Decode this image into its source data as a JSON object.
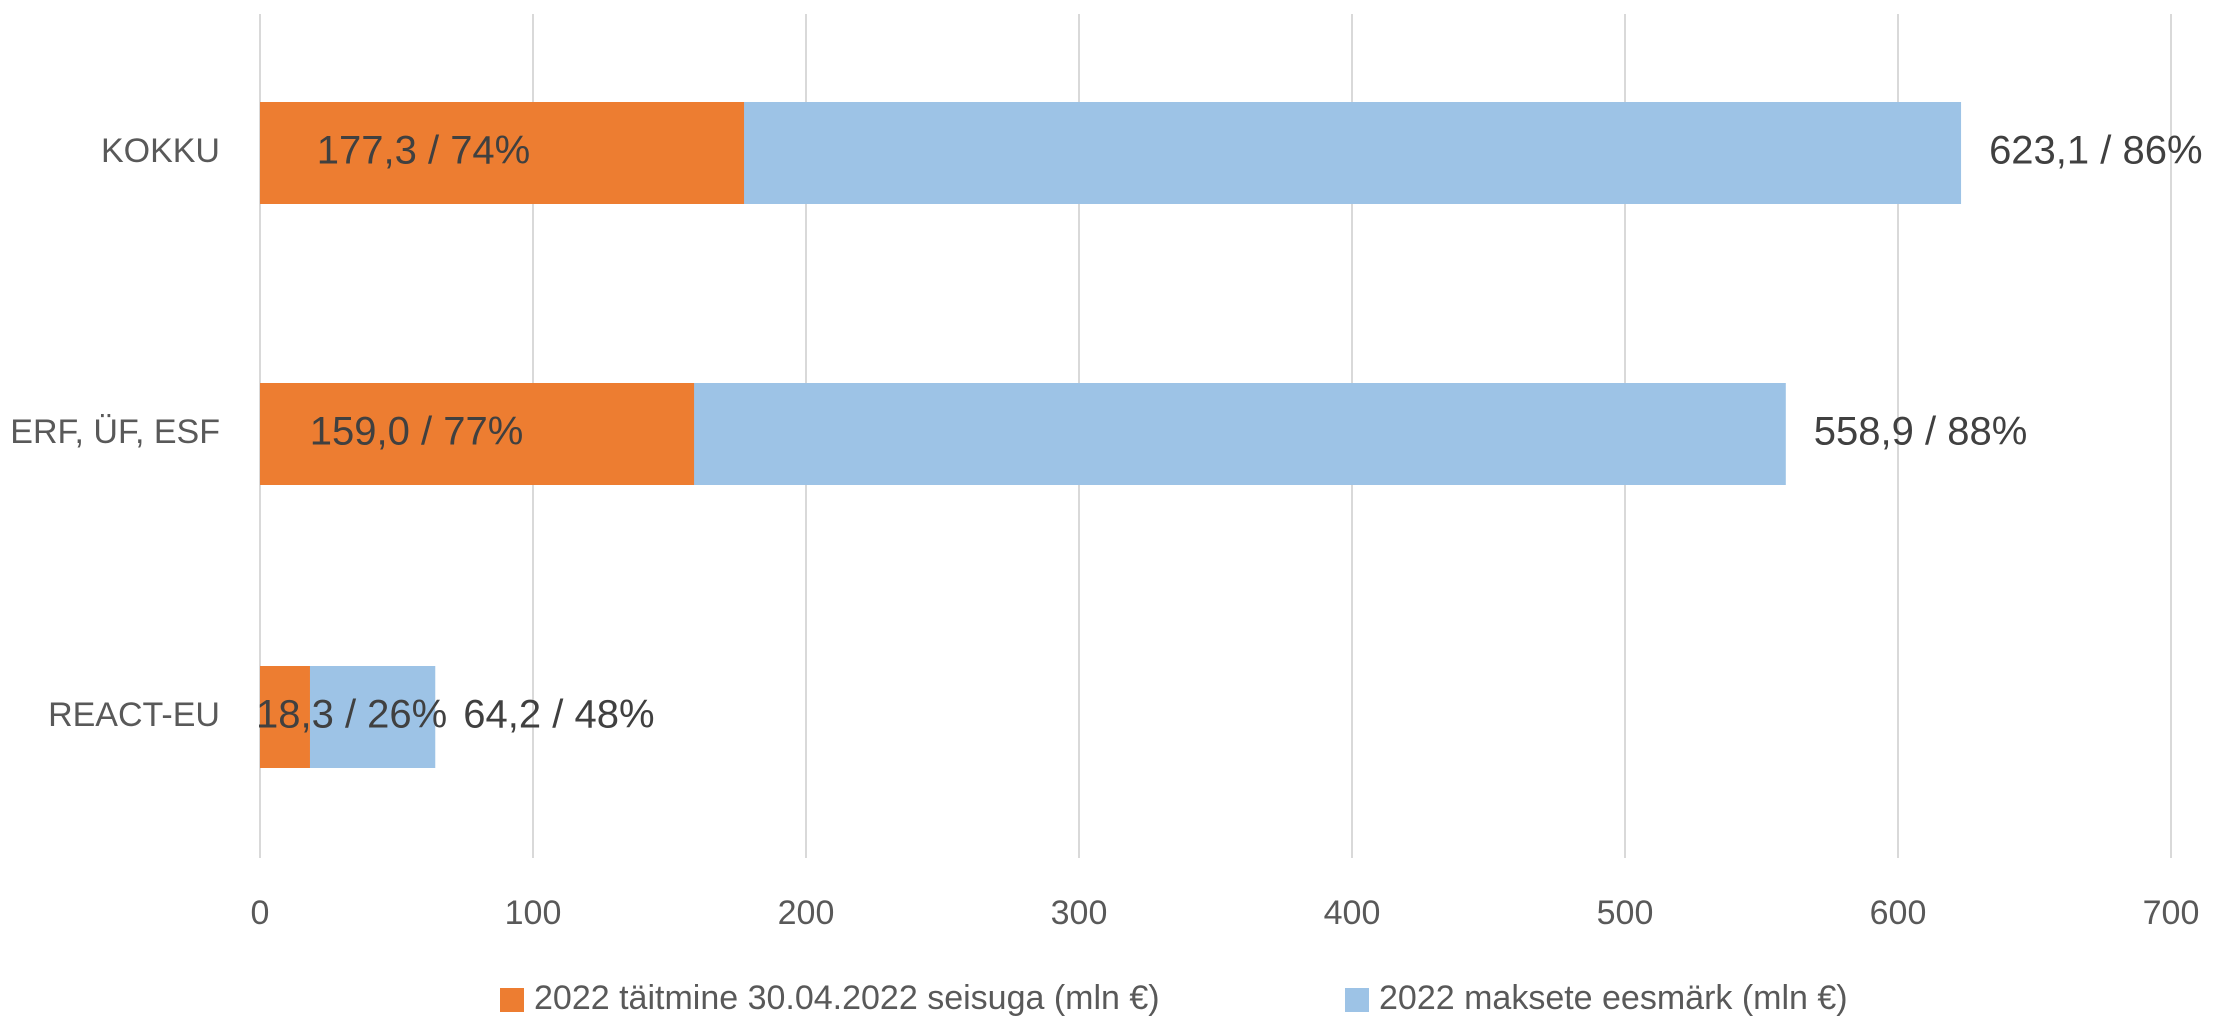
{
  "chart_data": {
    "type": "bar",
    "orientation": "horizontal",
    "categories": [
      "KOKKU",
      "ERF, ÜF, ESF",
      "REACT-EU"
    ],
    "series": [
      {
        "name": "2022 täitmine 30.04.2022 seisuga (mln €)",
        "color": "#ED7D31",
        "values": [
          177.3,
          159.0,
          18.3
        ],
        "value_labels": [
          "177,3 / 74%",
          "159,0 / 77%",
          "18,3 / 26%"
        ]
      },
      {
        "name": "2022 maksete eesmärk (mln €)",
        "color": "#9DC3E6",
        "values": [
          623.1,
          558.9,
          64.2
        ],
        "value_labels": [
          "623,1 / 86%",
          "558,9 / 88%",
          "64,2 / 48%"
        ]
      }
    ],
    "xlim": [
      0,
      700
    ],
    "xticks": [
      0,
      100,
      200,
      300,
      400,
      500,
      600,
      700
    ],
    "grid": true,
    "legend": "bottom"
  }
}
